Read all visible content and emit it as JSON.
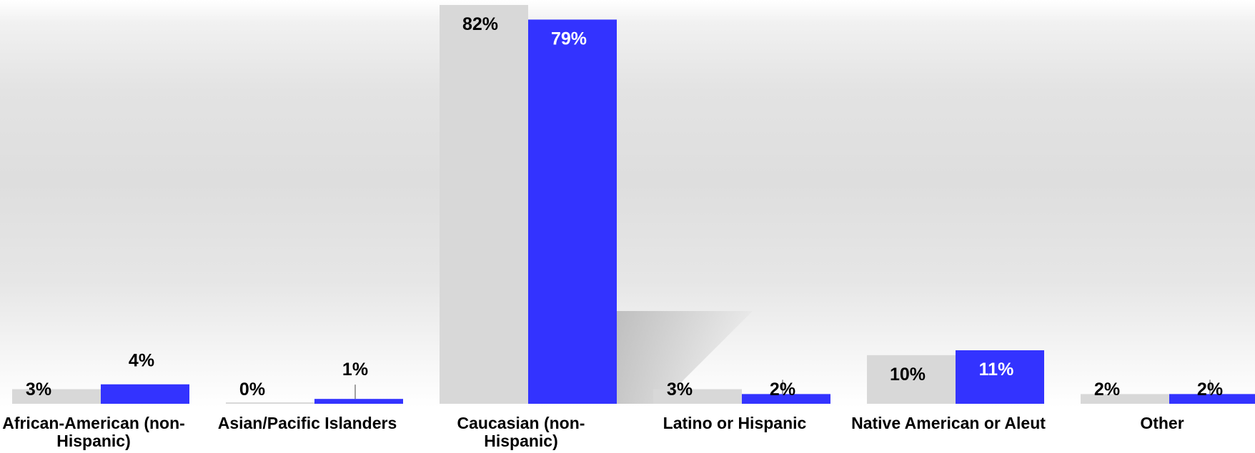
{
  "chart_data": {
    "type": "bar",
    "categories": [
      "African-American (non-Hispanic)",
      "Asian/Pacific Islanders",
      "Caucasian (non-Hispanic)",
      "Latino or Hispanic",
      "Native American or Aleut",
      "Other"
    ],
    "category_label_lines": [
      [
        "African-American (non-",
        "Hispanic)"
      ],
      [
        "Asian/Pacific Islanders"
      ],
      [
        "Caucasian (non-",
        "Hispanic)"
      ],
      [
        "Latino or Hispanic"
      ],
      [
        "Native American or Aleut"
      ],
      [
        "Other"
      ]
    ],
    "series": [
      {
        "values": [
          3,
          0,
          82,
          3,
          10,
          2
        ],
        "labels": [
          "3%",
          "0%",
          "82%",
          "3%",
          "10%",
          "2%"
        ],
        "color": "#d8d8d8"
      },
      {
        "values": [
          4,
          1,
          79,
          2,
          11,
          2
        ],
        "labels": [
          "4%",
          "1%",
          "79%",
          "2%",
          "11%",
          "2%"
        ],
        "color": "#3333ff"
      }
    ],
    "title": "",
    "xlabel": "",
    "ylabel": "",
    "ylim": [
      0,
      82
    ],
    "grid": false,
    "legend": "none"
  }
}
